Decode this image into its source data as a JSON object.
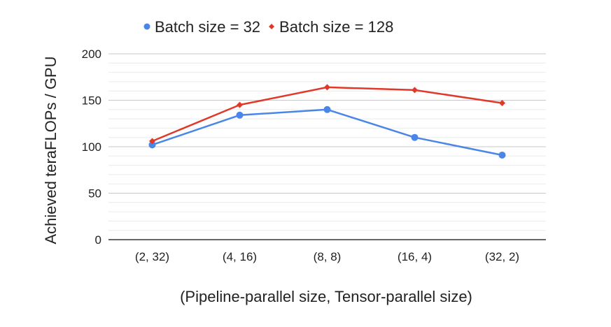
{
  "chart_data": {
    "type": "line",
    "categories": [
      "(2, 32)",
      "(4, 16)",
      "(8, 8)",
      "(16, 4)",
      "(32, 2)"
    ],
    "series": [
      {
        "name": "Batch size = 32",
        "values": [
          102,
          134,
          140,
          110,
          91
        ],
        "color": "#4a86e8",
        "marker": "circle"
      },
      {
        "name": "Batch size = 128",
        "values": [
          106,
          145,
          164,
          161,
          147
        ],
        "color": "#e0392b",
        "marker": "diamond"
      }
    ],
    "xlabel": "(Pipeline-parallel size, Tensor-parallel size)",
    "ylabel": "Achieved teraFLOPs / GPU",
    "ylim": [
      0,
      200
    ],
    "yticks": [
      0,
      50,
      100,
      150,
      200
    ],
    "minor_grid_step": 10,
    "legend_position": "top",
    "grid": true
  }
}
